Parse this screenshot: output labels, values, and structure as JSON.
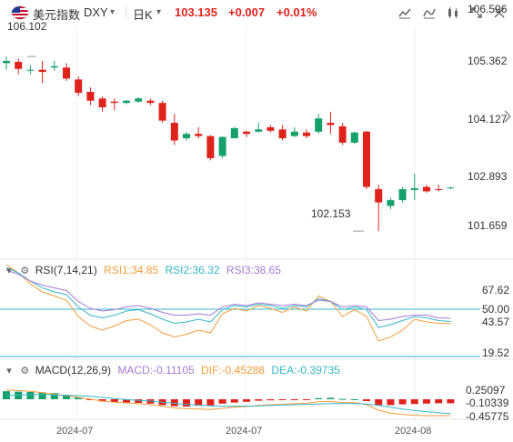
{
  "header": {
    "symbol_name": "美元指数",
    "ticker": "DXY",
    "ticker_dropdown": "▾",
    "period": "日K",
    "period_dropdown": "▾",
    "price": "103.135",
    "change": "+0.007",
    "change_pct": "+0.01%"
  },
  "toolbar_icons": [
    "line-chart-icon",
    "indicator-icon",
    "drawing-tools-icon",
    "fullscreen-icon",
    "settings-icon"
  ],
  "main_chart": {
    "y_ticks": [
      "106.596",
      "105.362",
      "104.127",
      "102.893",
      "101.659"
    ],
    "high_label": "106.102",
    "low_label": "102.153"
  },
  "rsi": {
    "title": "RSI(7,14,21)",
    "rsi1": "RSI1:34.85",
    "rsi2": "RSI2:36.32",
    "rsi3": "RSI3:38.65",
    "y_ticks": [
      "67.62",
      "50.00",
      "43.57",
      "19.52"
    ],
    "colors": {
      "rsi1": "#f39c3c",
      "rsi2": "#35b7c7",
      "rsi3": "#a47ad6"
    }
  },
  "macd": {
    "title": "MACD(12,26,9)",
    "macd": "MACD:-0.11105",
    "dif": "DIF:-0.45288",
    "dea": "DEA:-0.39735",
    "y_ticks": [
      "0.25097",
      "-0.10339",
      "-0.45775"
    ],
    "colors": {
      "macd": "#a47ad6",
      "dif": "#f39c3c",
      "dea": "#35b7c7"
    }
  },
  "x_labels": [
    "2024-07",
    "2024-07",
    "2024-08"
  ],
  "colors": {
    "up": "#14a06b",
    "down": "#e0221c",
    "accent_red": "#e0221c"
  },
  "chart_data": {
    "type": "candlestick",
    "candles": [
      {
        "o": 105.95,
        "h": 106.1,
        "l": 105.8,
        "c": 106.0
      },
      {
        "o": 105.98,
        "h": 106.05,
        "l": 105.7,
        "c": 105.82
      },
      {
        "o": 105.8,
        "h": 105.9,
        "l": 105.7,
        "c": 105.8
      },
      {
        "o": 105.8,
        "h": 106.0,
        "l": 105.5,
        "c": 105.75
      },
      {
        "o": 105.85,
        "h": 106.0,
        "l": 105.78,
        "c": 105.88
      },
      {
        "o": 105.85,
        "h": 105.95,
        "l": 105.55,
        "c": 105.6
      },
      {
        "o": 105.58,
        "h": 105.65,
        "l": 105.2,
        "c": 105.28
      },
      {
        "o": 105.3,
        "h": 105.4,
        "l": 105.0,
        "c": 105.1
      },
      {
        "o": 105.15,
        "h": 105.2,
        "l": 104.85,
        "c": 104.95
      },
      {
        "o": 105.08,
        "h": 105.15,
        "l": 104.88,
        "c": 105.05
      },
      {
        "o": 105.05,
        "h": 105.12,
        "l": 105.02,
        "c": 105.1
      },
      {
        "o": 105.08,
        "h": 105.18,
        "l": 105.05,
        "c": 105.15
      },
      {
        "o": 105.1,
        "h": 105.15,
        "l": 105.0,
        "c": 105.05
      },
      {
        "o": 105.05,
        "h": 105.1,
        "l": 104.6,
        "c": 104.65
      },
      {
        "o": 104.6,
        "h": 104.8,
        "l": 104.1,
        "c": 104.2
      },
      {
        "o": 104.25,
        "h": 104.4,
        "l": 104.2,
        "c": 104.35
      },
      {
        "o": 104.35,
        "h": 104.5,
        "l": 104.25,
        "c": 104.3
      },
      {
        "o": 104.3,
        "h": 104.32,
        "l": 103.75,
        "c": 103.8
      },
      {
        "o": 103.85,
        "h": 104.3,
        "l": 103.8,
        "c": 104.28
      },
      {
        "o": 104.25,
        "h": 104.5,
        "l": 104.25,
        "c": 104.48
      },
      {
        "o": 104.4,
        "h": 104.42,
        "l": 104.28,
        "c": 104.35
      },
      {
        "o": 104.4,
        "h": 104.6,
        "l": 104.38,
        "c": 104.45
      },
      {
        "o": 104.5,
        "h": 104.55,
        "l": 104.38,
        "c": 104.42
      },
      {
        "o": 104.45,
        "h": 104.55,
        "l": 104.2,
        "c": 104.25
      },
      {
        "o": 104.3,
        "h": 104.5,
        "l": 104.28,
        "c": 104.4
      },
      {
        "o": 104.38,
        "h": 104.45,
        "l": 104.25,
        "c": 104.3
      },
      {
        "o": 104.4,
        "h": 104.8,
        "l": 104.35,
        "c": 104.7
      },
      {
        "o": 104.6,
        "h": 104.85,
        "l": 104.35,
        "c": 104.55
      },
      {
        "o": 104.52,
        "h": 104.6,
        "l": 104.1,
        "c": 104.15
      },
      {
        "o": 104.15,
        "h": 104.4,
        "l": 104.12,
        "c": 104.38
      },
      {
        "o": 104.4,
        "h": 104.42,
        "l": 103.1,
        "c": 103.15
      },
      {
        "o": 103.1,
        "h": 103.2,
        "l": 102.15,
        "c": 102.8
      },
      {
        "o": 102.72,
        "h": 102.9,
        "l": 102.65,
        "c": 102.85
      },
      {
        "o": 102.85,
        "h": 103.15,
        "l": 102.8,
        "c": 103.1
      },
      {
        "o": 103.08,
        "h": 103.45,
        "l": 102.85,
        "c": 103.12
      },
      {
        "o": 103.15,
        "h": 103.2,
        "l": 103.02,
        "c": 103.05
      },
      {
        "o": 103.1,
        "h": 103.2,
        "l": 103.05,
        "c": 103.08
      },
      {
        "o": 103.13,
        "h": 103.16,
        "l": 103.11,
        "c": 103.135
      }
    ],
    "ylim": [
      101.659,
      106.596
    ]
  }
}
